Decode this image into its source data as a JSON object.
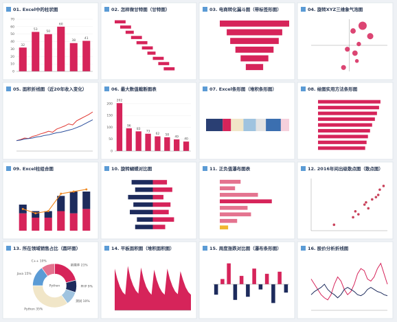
{
  "chart_data": [
    {
      "type": "bar",
      "title": "01. Excel中的柱状图",
      "values": [
        32,
        53,
        50,
        60,
        38,
        41
      ],
      "color": "#d6245a",
      "ylim": [
        0,
        70
      ],
      "yticks": [
        0,
        10,
        20,
        30,
        40,
        50,
        60,
        70
      ],
      "data_labels": true
    },
    {
      "type": "gantt",
      "title": "02. 怎样做甘特图（甘特图）",
      "start": [
        0,
        1,
        2,
        3,
        4,
        5,
        6,
        7,
        8,
        9
      ],
      "values": [
        2,
        2,
        1.5,
        2,
        2,
        2,
        1.5,
        2,
        2,
        2
      ],
      "color": "#d6245a",
      "xlim": [
        0,
        14
      ]
    },
    {
      "type": "funnel",
      "title": "03. 电商转化漏斗图（带标签形图）",
      "values": [
        100,
        80,
        70,
        55,
        40,
        25
      ],
      "color": "#d6245a",
      "xlim": [
        0,
        100
      ]
    },
    {
      "type": "scatter",
      "title": "04. 旋转XYZ三维象气泡图",
      "x": [
        0.35,
        0.1,
        0.55,
        0.25,
        -0.05,
        0.15,
        0.2,
        -0.15
      ],
      "y": [
        0.75,
        0.55,
        0.35,
        0.05,
        -0.15,
        -0.3,
        -0.6,
        -0.85
      ],
      "size": [
        14,
        6,
        8,
        4,
        5,
        6,
        3,
        5
      ],
      "color": "#d6245a",
      "xlim": [
        -1,
        1
      ],
      "ylim": [
        -1,
        1
      ],
      "cross_axes": true
    },
    {
      "type": "line",
      "title": "05. 面积折线图（近20年收入变化）",
      "series": [
        {
          "color": "#e0342e",
          "values": [
            20,
            22,
            25,
            24,
            28,
            30,
            33,
            35,
            38,
            36,
            42,
            45,
            48,
            52,
            50,
            58,
            62,
            66,
            70,
            75
          ]
        },
        {
          "color": "#2a4d9b",
          "values": [
            20,
            21,
            23,
            24,
            25,
            27,
            28,
            30,
            31,
            33,
            35,
            36,
            38,
            40,
            42,
            45,
            48,
            52,
            56,
            60
          ]
        }
      ],
      "ylim": [
        0,
        100
      ]
    },
    {
      "type": "bar",
      "title": "06. 最大数值截断图表",
      "values": [
        202,
        96,
        83,
        73,
        62,
        58,
        49,
        40
      ],
      "color": "#d6245a",
      "ylim": [
        0,
        220
      ],
      "yticks": [
        0,
        50,
        100,
        150,
        200
      ],
      "data_labels": true
    },
    {
      "type": "stackedhbar",
      "title": "07. Excel条形图（堆积条形图）",
      "series": [
        {
          "color": "#2a3f73",
          "values": [
            20
          ]
        },
        {
          "color": "#d6245a",
          "values": [
            10
          ]
        },
        {
          "color": "#f1e6c8",
          "values": [
            15
          ]
        },
        {
          "color": "#9fc3df",
          "values": [
            15
          ]
        },
        {
          "color": "#e3e3e3",
          "values": [
            12
          ]
        },
        {
          "color": "#3b6fb0",
          "values": [
            18
          ]
        },
        {
          "color": "#f5d0dc",
          "values": [
            10
          ]
        }
      ],
      "xlim": [
        0,
        100
      ]
    },
    {
      "type": "hbar",
      "title": "08. 绘图实用方法条形图",
      "values": [
        90,
        88,
        85,
        82,
        78,
        75,
        72,
        70,
        68
      ],
      "color": "#d6245a",
      "xlim": [
        0,
        100
      ]
    },
    {
      "type": "combo",
      "title": "09. Excel柱组合图",
      "series": [
        {
          "color": "#d6245a",
          "values": [
            40,
            30,
            30,
            45,
            40,
            50
          ]
        },
        {
          "color": "#1d2b5c",
          "values": [
            20,
            15,
            15,
            35,
            50,
            40
          ]
        },
        {
          "kind": "line",
          "color": "#f08a24",
          "values": [
            50,
            40,
            45,
            85,
            90,
            95
          ]
        }
      ],
      "ylim": [
        0,
        120
      ]
    },
    {
      "type": "butterfly",
      "title": "10. 旋转蝴蝶对比图",
      "series": [
        {
          "color": "#1d2b5c",
          "values": [
            60,
            50,
            70,
            55,
            65,
            45,
            50
          ]
        },
        {
          "color": "#d6245a",
          "values": [
            40,
            55,
            30,
            50,
            45,
            60,
            35
          ]
        }
      ],
      "xlim": [
        0,
        100
      ]
    },
    {
      "type": "hbar",
      "title": "11. 正负值瀑布图表",
      "values": [
        30,
        22,
        55,
        75,
        40,
        45,
        25,
        12
      ],
      "colors": [
        "#e4738f",
        "#e4738f",
        "#e4738f",
        "#d6245a",
        "#e4738f",
        "#e4738f",
        "#e4738f",
        "#f2b630"
      ],
      "xlim": [
        0,
        100
      ]
    },
    {
      "type": "scatter",
      "title": "12. 2016年间出级散点图（散点图）",
      "x": [
        30,
        55,
        62,
        70,
        75,
        80,
        85,
        88,
        90,
        95,
        58,
        72
      ],
      "y": [
        8,
        18,
        22,
        35,
        30,
        42,
        45,
        48,
        55,
        60,
        26,
        38
      ],
      "color": "#c0223f",
      "xlim": [
        0,
        100
      ],
      "ylim": [
        0,
        70
      ]
    },
    {
      "type": "donut",
      "title": "13. 所在领域销售占比（圆环图）",
      "values": [
        21,
        9,
        10,
        35,
        15,
        10
      ],
      "value_labels": [
        "新媒体 21%",
        "PHP 9%",
        "测试 10%",
        "Python 35%",
        "Java 15%",
        "C++ 10%"
      ],
      "colors": [
        "#d6245a",
        "#1d2b5c",
        "#9fc3df",
        "#f1e6c8",
        "#5b9bd5",
        "#e4738f"
      ],
      "center": "Python"
    },
    {
      "type": "area",
      "title": "14. 平板面积图（堆积面积图）",
      "series": [
        {
          "color": "#d6245a",
          "values": [
            80,
            60,
            45,
            35,
            30,
            85,
            62,
            48,
            38,
            32,
            82,
            60,
            45,
            36,
            30,
            78,
            58,
            44,
            35,
            30,
            80,
            60,
            46,
            36,
            31,
            75,
            58,
            44,
            35,
            30
          ]
        }
      ],
      "ylim": [
        0,
        100
      ]
    },
    {
      "type": "bar",
      "title": "15. 周度涨跌对比图（瀑布条形图）",
      "values": [
        -10,
        5,
        20,
        -15,
        8,
        -12,
        15,
        -5,
        10,
        -18,
        12,
        -8
      ],
      "colors": [
        "#1d2b5c",
        "#d6245a",
        "#d6245a",
        "#1d2b5c",
        "#d6245a",
        "#1d2b5c",
        "#d6245a",
        "#1d2b5c",
        "#d6245a",
        "#1d2b5c",
        "#d6245a",
        "#1d2b5c"
      ],
      "ylim": [
        -25,
        25
      ]
    },
    {
      "type": "line",
      "title": "16. 股价分析折线图",
      "series": [
        {
          "color": "#d6245a",
          "values": [
            60,
            55,
            50,
            45,
            42,
            40,
            45,
            55,
            62,
            58,
            50,
            45,
            48,
            55,
            65,
            70,
            68,
            60,
            58,
            62,
            70,
            75,
            65,
            55
          ]
        },
        {
          "color": "#1d2b5c",
          "values": [
            45,
            48,
            50,
            52,
            55,
            50,
            47,
            45,
            42,
            45,
            50,
            52,
            50,
            48,
            45,
            44,
            46,
            50,
            52,
            50,
            48,
            47,
            45,
            44
          ]
        }
      ],
      "ylim": [
        30,
        80
      ]
    }
  ]
}
